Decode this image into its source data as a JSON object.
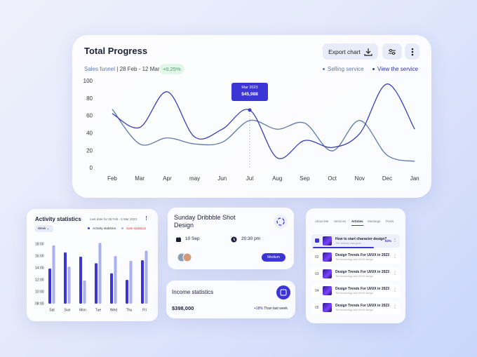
{
  "total_progress": {
    "title": "Total Progress",
    "export_button": "Export chart",
    "subtitle": "Sales funnel",
    "date_range": "28 Feb - 12  Mar",
    "change": "+0.25%",
    "tooltip": {
      "label": "Mar 2023",
      "value": "$45,988"
    },
    "chart": {
      "type": "line",
      "categories": [
        "Feb",
        "Mar",
        "Apr",
        "may",
        "Jun",
        "Jul",
        "Aug",
        "Sep",
        "Oct",
        "Nov",
        "Dec",
        "Jan"
      ],
      "series": [
        {
          "name": "Selling service",
          "color": "#5b79aa",
          "values": [
            68,
            28,
            35,
            28,
            30,
            55,
            45,
            52,
            20,
            55,
            15,
            8
          ]
        },
        {
          "name": "View the service",
          "color": "#3a3fb4",
          "values": [
            63,
            47,
            88,
            36,
            45,
            67,
            12,
            32,
            24,
            40,
            97,
            45
          ]
        }
      ],
      "ylim": [
        0,
        100
      ],
      "yticks": [
        0,
        20,
        40,
        60,
        80,
        100
      ],
      "highlight_series": 1,
      "highlight_index": 5
    }
  },
  "activity": {
    "title": "Activity statistics",
    "date_note": "Last date for 28 Feb - 5 Mar 2023",
    "period": "Week",
    "chart": {
      "type": "bar",
      "categories": [
        "Sat",
        "Sun",
        "Mon",
        "Tue",
        "Wed",
        "Thu",
        "Fri"
      ],
      "series": [
        {
          "name": "Activity statistics",
          "color": "#3b35d6",
          "values": [
            13.9,
            16.6,
            15.9,
            14.8,
            13.1,
            12,
            15.3
          ]
        },
        {
          "name": "Sale statistics",
          "color": "#a9b1f2",
          "values": [
            17.8,
            14.2,
            11.9,
            18.2,
            16,
            15.2,
            16.9
          ]
        }
      ],
      "ylim": [
        8,
        19
      ],
      "yticks": [
        {
          "value": 8,
          "label": "08:00"
        },
        {
          "value": 10,
          "label": "10:00"
        },
        {
          "value": 12,
          "label": "12:00"
        },
        {
          "value": 14,
          "label": "14:00"
        },
        {
          "value": 16,
          "label": "16:00"
        },
        {
          "value": 18,
          "label": "18:00"
        }
      ]
    }
  },
  "event": {
    "title": "Sunday Dribbble Shot Design",
    "date": "10 Sep",
    "time": "20:30 pm",
    "priority": "Medium"
  },
  "income": {
    "title": "Income statistics",
    "amount": "$398,000",
    "change": "+18%",
    "change_note": "Than last week"
  },
  "articles": {
    "tabs": [
      "About Me",
      "Services",
      "Articles",
      "Meetings",
      "Posts"
    ],
    "active_tab": 2,
    "items": [
      {
        "title": "How to start character design?",
        "subtitle": "The ordinary was good ...",
        "progress": 60,
        "progress_label": "60%"
      },
      {
        "number": "02",
        "title": "Design Trends For UI/UX in 2023",
        "subtitle": "The technology and UI/UX design"
      },
      {
        "number": "03",
        "title": "Design Trends For UI/UX in 2023",
        "subtitle": "The technology and UI/UX design"
      },
      {
        "number": "04",
        "title": "Design Trends For UI/UX in 2023",
        "subtitle": "The technology and UI/UX design"
      },
      {
        "number": "05",
        "title": "Design Trends For UI/UX in 2023",
        "subtitle": "The technology and UI/UX design"
      }
    ]
  }
}
